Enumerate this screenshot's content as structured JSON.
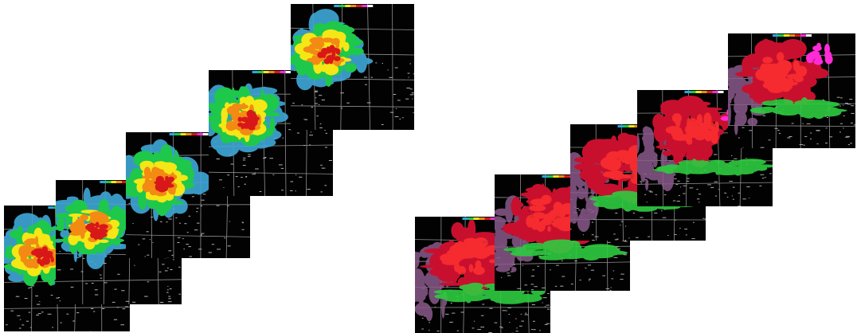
{
  "figure": {
    "groups": [
      {
        "product": "reflectivity",
        "frame_count": 5,
        "colors": {
          "background": "#020202",
          "boundaries": "#8f8f8f",
          "clutter": "#b0b0b0",
          "light": "#3fa9d8",
          "moderate": "#1ec84a",
          "heavy": "#f5e616",
          "intense": "#f28a14",
          "extreme": "#d81818"
        }
      },
      {
        "product": "velocity",
        "frame_count": 5,
        "colors": {
          "background": "#020202",
          "boundaries": "#8f8f8f",
          "clutter": "#a9a9a9",
          "outbound": "#c8102e",
          "outbound_strong": "#ff3030",
          "inbound": "#2ecc40",
          "folded": "#ff2bd6",
          "range_fold": "#8a5a8a"
        }
      }
    ]
  }
}
